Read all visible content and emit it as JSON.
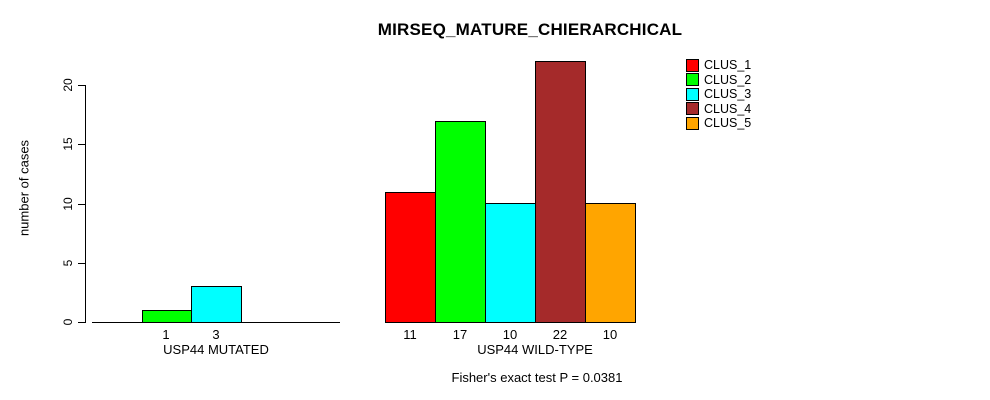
{
  "chart_data": {
    "type": "bar",
    "title": "MIRSEQ_MATURE_CHIERARCHICAL",
    "ylabel": "number of cases",
    "yticks": [
      0,
      5,
      10,
      15,
      20
    ],
    "ylim": [
      0,
      22
    ],
    "grid": false,
    "legend_position": "right",
    "clusters": [
      {
        "name": "CLUS_1",
        "color": "#FF0000"
      },
      {
        "name": "CLUS_2",
        "color": "#00FF00"
      },
      {
        "name": "CLUS_3",
        "color": "#00FFFF"
      },
      {
        "name": "CLUS_4",
        "color": "#A52A2A"
      },
      {
        "name": "CLUS_5",
        "color": "#FFA500"
      }
    ],
    "groups": [
      {
        "label": "USP44 MUTATED",
        "values": [
          0,
          1,
          3,
          0,
          0
        ],
        "bar_labels": [
          "",
          "1",
          "3",
          "",
          ""
        ]
      },
      {
        "label": "USP44 WILD-TYPE",
        "values": [
          11,
          17,
          10,
          22,
          10
        ],
        "bar_labels": [
          "11",
          "17",
          "10",
          "22",
          "10"
        ]
      }
    ],
    "annotation": "Fisher's exact test P = 0.0381"
  }
}
